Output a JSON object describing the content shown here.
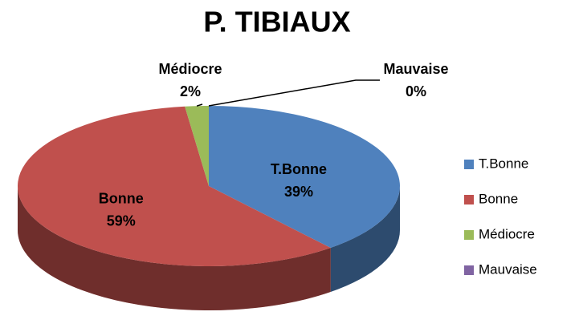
{
  "chart_data": {
    "type": "pie",
    "title": "P. TIBIAUX",
    "categories": [
      "T.Bonne",
      "Bonne",
      "Médiocre",
      "Mauvaise"
    ],
    "values": [
      39,
      59,
      2,
      0
    ],
    "value_labels": [
      "39%",
      "59%",
      "2%",
      "0%"
    ],
    "colors": [
      "#4f81bd",
      "#c0504d",
      "#9bbb59",
      "#8064a2"
    ],
    "legend": "right"
  }
}
